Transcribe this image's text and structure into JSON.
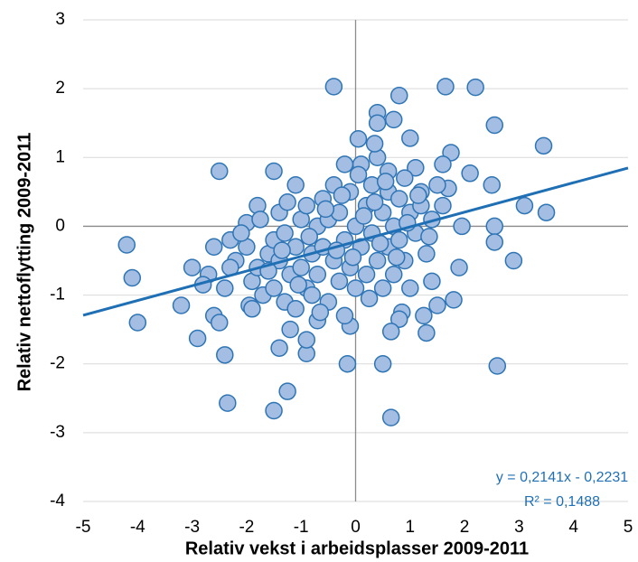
{
  "chart_data": {
    "type": "scatter",
    "xlabel": "Relativ vekst i arbeidsplasser 2009-2011",
    "ylabel": "Relativ nettoflytting 2009-2011",
    "xlim": [
      -5,
      5
    ],
    "xticks": [
      -5,
      -4,
      -3,
      -2,
      -1,
      0,
      1,
      2,
      3,
      4,
      5
    ],
    "ylim": [
      -4,
      3
    ],
    "yticks": [
      -4,
      -3,
      -2,
      -1,
      0,
      1,
      2,
      3
    ],
    "grid": true,
    "series": [
      {
        "color": "#a3bde3",
        "x": [
          -4.2,
          -4.1,
          -4.0,
          -3.2,
          -2.9,
          -2.5,
          -2.4,
          -2.35,
          -1.5,
          -1.25,
          -1.4,
          -0.9,
          -0.9,
          -0.4,
          -0.15,
          0.5,
          0.65,
          0.8,
          0.4,
          0.7,
          1.65,
          2.2,
          2.55,
          3.45,
          3.1,
          3.5,
          2.55,
          2.55,
          2.9,
          2.6,
          2.5,
          2.1,
          1.75,
          1.0,
          0.05,
          0.4,
          -1.5,
          -1.1,
          1.3,
          1.5,
          1.8,
          1.9,
          1.25,
          0.85,
          0.8,
          0.65,
          -0.1,
          -0.7,
          -1.2,
          -1.95,
          -2.6,
          -2.5,
          -2.7,
          -2.8,
          -2.6,
          -2.3,
          -2.0,
          -1.8,
          -1.4,
          1.6,
          1.7,
          1.95,
          1.6,
          1.2,
          1.1,
          0.6,
          -2.2,
          -2.0,
          -1.9,
          -1.8,
          -1.7,
          -1.6,
          -1.5,
          -1.5,
          -1.4,
          -1.3,
          -1.3,
          -1.2,
          -1.1,
          -1.1,
          -1.0,
          -1.0,
          -0.9,
          -0.9,
          -0.8,
          -0.8,
          -0.7,
          -0.7,
          -0.6,
          -0.6,
          -0.5,
          -0.5,
          -0.4,
          -0.4,
          -0.3,
          -0.3,
          -0.2,
          -0.2,
          -0.1,
          -0.1,
          0.0,
          0.0,
          0.1,
          0.1,
          0.2,
          0.2,
          0.3,
          0.3,
          0.4,
          0.4,
          0.5,
          0.5,
          0.6,
          0.6,
          0.7,
          0.7,
          0.8,
          0.8,
          0.9,
          0.9,
          1.0,
          1.0,
          1.1,
          1.2,
          1.3,
          1.4,
          1.4,
          1.5,
          -2.4,
          -2.1,
          -1.9,
          -1.75,
          -1.6,
          -1.35,
          -1.25,
          -1.05,
          -0.85,
          -0.65,
          -0.55,
          -0.35,
          -0.25,
          -0.05,
          0.15,
          0.25,
          0.35,
          0.45,
          0.55,
          0.75,
          0.95,
          1.15,
          1.35,
          -3.0,
          -2.3,
          0.05,
          -0.2,
          0.35
        ],
        "values": [
          -0.27,
          -0.75,
          -1.4,
          -1.15,
          -1.63,
          0.8,
          -1.87,
          -2.57,
          -2.68,
          -2.4,
          -1.77,
          -1.85,
          -1.65,
          2.03,
          -2.0,
          -2.0,
          -2.78,
          1.9,
          1.65,
          1.55,
          2.03,
          2.02,
          1.47,
          1.17,
          0.3,
          0.2,
          0.0,
          -0.23,
          -0.5,
          -2.03,
          0.6,
          0.77,
          1.07,
          1.28,
          1.27,
          1.5,
          0.8,
          0.6,
          -1.55,
          -1.15,
          -1.07,
          -0.6,
          -1.3,
          -1.25,
          -1.35,
          -1.53,
          -1.45,
          -1.37,
          -1.5,
          -1.15,
          -1.3,
          -1.4,
          -0.7,
          -0.85,
          -0.3,
          -0.2,
          0.05,
          0.3,
          0.2,
          0.9,
          0.55,
          0.0,
          0.3,
          0.5,
          0.85,
          0.8,
          -0.5,
          -0.3,
          -0.8,
          -0.6,
          -1.0,
          -0.4,
          -0.2,
          -0.9,
          -0.5,
          -1.1,
          -0.1,
          -0.7,
          -0.3,
          -1.2,
          0.1,
          -0.6,
          -0.9,
          0.3,
          -0.4,
          -1.0,
          0.0,
          -0.7,
          0.4,
          -0.3,
          -1.1,
          0.1,
          -0.5,
          0.6,
          -0.8,
          0.2,
          -0.2,
          -1.3,
          0.5,
          -0.6,
          0.0,
          -0.9,
          0.9,
          -0.3,
          0.3,
          -0.7,
          0.6,
          -0.1,
          -0.5,
          1.0,
          0.2,
          -0.9,
          0.5,
          -0.3,
          0.0,
          -0.7,
          0.4,
          -0.2,
          0.7,
          -0.5,
          0.2,
          -0.9,
          -0.1,
          0.3,
          -0.4,
          0.1,
          -0.8,
          0.6,
          -0.9,
          -0.1,
          -1.2,
          0.1,
          -0.65,
          -0.35,
          0.35,
          -0.85,
          -0.15,
          -1.25,
          0.25,
          -0.35,
          0.45,
          -0.45,
          0.15,
          -1.05,
          0.35,
          -0.25,
          0.65,
          -0.45,
          0.05,
          0.45,
          -0.15,
          -0.6,
          -0.6,
          0.75,
          0.9,
          1.2
        ]
      }
    ],
    "trendline": {
      "slope": 0.2141,
      "intercept": -0.2231,
      "color": "#1f6fb5",
      "equation": "y = 0,2141x - 0,2231",
      "r2": "R² = 0,1488"
    }
  }
}
